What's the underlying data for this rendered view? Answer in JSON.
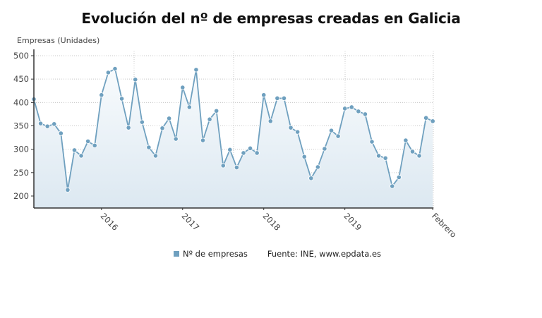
{
  "title": "Evolución del nº de empresas creadas en Galicia",
  "y_axis_label": "Empresas (Unidades)",
  "legend": {
    "series_label": "Nº de empresas",
    "source": "Fuente: INE, www.epdata.es"
  },
  "colors": {
    "line": "#6fa0bf",
    "marker": "#6fa0bf",
    "fill_top": "#f6f9fc",
    "fill_bottom": "#dde9f2",
    "grid": "#c8c8c8",
    "axis": "#333333"
  },
  "chart_data": {
    "type": "area",
    "title": "Evolución del nº de empresas creadas en Galicia",
    "xlabel": "",
    "ylabel": "Empresas (Unidades)",
    "ylim": [
      175,
      505
    ],
    "yticks": [
      200,
      250,
      300,
      350,
      400,
      450,
      500
    ],
    "xtick_labels": [
      "2016",
      "2017",
      "2018",
      "2019",
      "Febrero"
    ],
    "xtick_indices": [
      10,
      22,
      34,
      46,
      59
    ],
    "grid": true,
    "legend_position": "bottom",
    "x": [
      "2015-03",
      "2015-04",
      "2015-05",
      "2015-06",
      "2015-07",
      "2015-08",
      "2015-09",
      "2015-10",
      "2015-11",
      "2015-12",
      "2016-01",
      "2016-02",
      "2016-03",
      "2016-04",
      "2016-05",
      "2016-06",
      "2016-07",
      "2016-08",
      "2016-09",
      "2016-10",
      "2016-11",
      "2016-12",
      "2017-01",
      "2017-02",
      "2017-03",
      "2017-04",
      "2017-05",
      "2017-06",
      "2017-07",
      "2017-08",
      "2017-09",
      "2017-10",
      "2017-11",
      "2017-12",
      "2018-01",
      "2018-02",
      "2018-03",
      "2018-04",
      "2018-05",
      "2018-06",
      "2018-07",
      "2018-08",
      "2018-09",
      "2018-10",
      "2018-11",
      "2018-12",
      "2019-01",
      "2019-02",
      "2019-03",
      "2019-04",
      "2019-05",
      "2019-06",
      "2019-07",
      "2019-08",
      "2019-09",
      "2019-10",
      "2019-11",
      "2019-12",
      "2020-01",
      "2020-02"
    ],
    "series": [
      {
        "name": "Nº de empresas",
        "values": [
          407,
          355,
          349,
          354,
          334,
          213,
          298,
          286,
          317,
          308,
          416,
          464,
          472,
          408,
          346,
          449,
          358,
          304,
          286,
          345,
          366,
          322,
          432,
          390,
          470,
          319,
          364,
          382,
          265,
          299,
          261,
          292,
          302,
          292,
          416,
          360,
          409,
          409,
          346,
          337,
          284,
          238,
          262,
          301,
          340,
          328,
          387,
          390,
          381,
          375,
          316,
          286,
          281,
          221,
          240,
          319,
          295,
          286,
          367,
          360
        ]
      }
    ]
  }
}
